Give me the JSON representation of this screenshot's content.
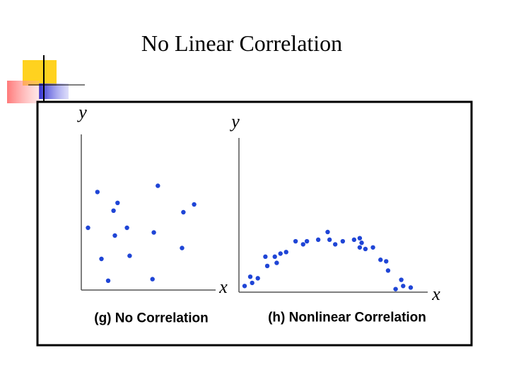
{
  "slide_title": "No Linear Correlation",
  "chart_data": [
    {
      "type": "scatter",
      "title": "(g) No Correlation",
      "xlabel": "x",
      "ylabel": "y",
      "color": "#1f45d6",
      "xlim": [
        0,
        100
      ],
      "ylim": [
        0,
        100
      ],
      "x": [
        12,
        27,
        24,
        57,
        84,
        76,
        5,
        34,
        25,
        54,
        15,
        36,
        75,
        20,
        53
      ],
      "values": [
        63,
        56,
        51,
        67,
        55,
        50,
        40,
        40,
        35,
        37,
        20,
        22,
        27,
        6,
        7
      ]
    },
    {
      "type": "scatter",
      "title": "(h) Nonlinear Correlation",
      "xlabel": "x",
      "ylabel": "y",
      "color": "#1f45d6",
      "xlim": [
        0,
        100
      ],
      "ylim": [
        0,
        100
      ],
      "x": [
        3,
        6,
        7,
        10,
        14,
        15,
        19,
        20,
        22,
        25,
        30,
        34,
        36,
        42,
        47,
        48,
        51,
        55,
        61,
        64,
        65,
        67,
        64,
        71,
        75,
        78,
        79,
        86,
        87,
        83,
        91
      ],
      "values": [
        4,
        10,
        6,
        9,
        23,
        17,
        23,
        19,
        25,
        26,
        33,
        31,
        33,
        34,
        39,
        34,
        31,
        33,
        34,
        35,
        32,
        28,
        29,
        29,
        21,
        20,
        14,
        8,
        4,
        2,
        3
      ]
    }
  ]
}
